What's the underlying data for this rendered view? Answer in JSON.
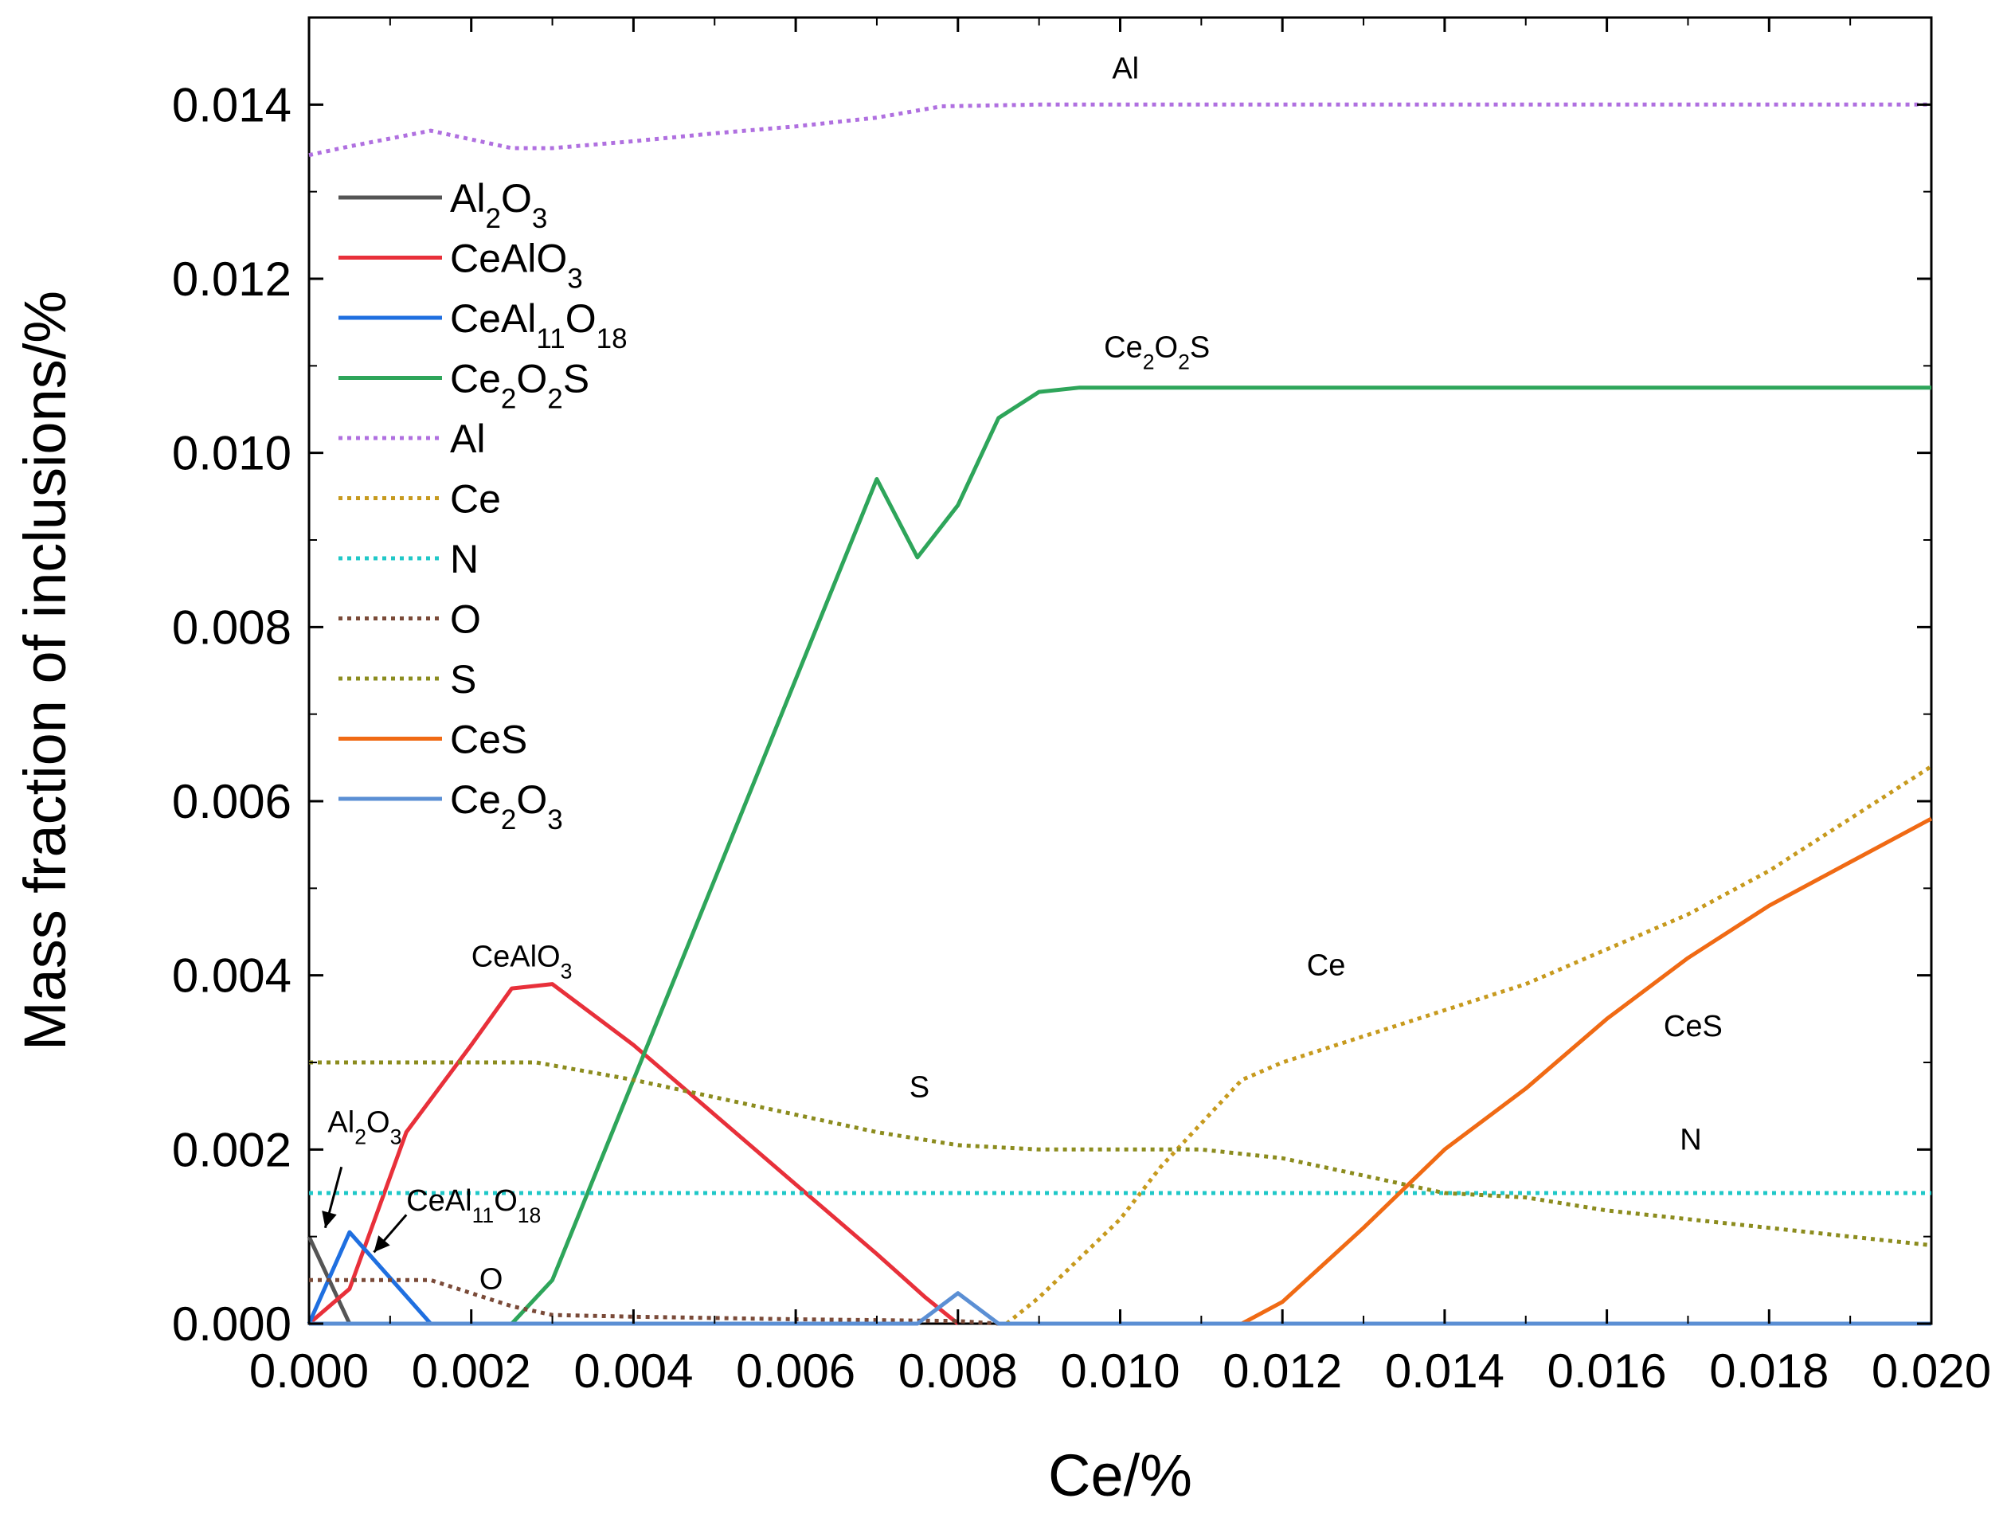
{
  "chart_data": {
    "type": "line",
    "title": "",
    "xlabel": "Ce/%",
    "ylabel": "Mass fraction of inclusions/%",
    "xlim": [
      0,
      0.02
    ],
    "ylim": [
      0,
      0.015
    ],
    "xticks": [
      "0.000",
      "0.002",
      "0.004",
      "0.006",
      "0.008",
      "0.010",
      "0.012",
      "0.014",
      "0.016",
      "0.018",
      "0.020"
    ],
    "yticks": [
      "0.000",
      "0.002",
      "0.004",
      "0.006",
      "0.008",
      "0.010",
      "0.012",
      "0.014"
    ],
    "grid": false,
    "legend_position": "top-left",
    "series": [
      {
        "name": "Al2O3",
        "label_base": "Al",
        "label_sub1": "2",
        "label_mid": "O",
        "label_sub2": "3",
        "color": "#555555",
        "style": "solid",
        "x": [
          0,
          0.0005
        ],
        "y": [
          0.001,
          0.0
        ]
      },
      {
        "name": "CeAlO3",
        "label_base": "CeAlO",
        "label_sub1": "3",
        "label_mid": "",
        "label_sub2": "",
        "color": "#e8303a",
        "style": "solid",
        "x": [
          0,
          0.0005,
          0.0012,
          0.002,
          0.0025,
          0.003,
          0.004,
          0.005,
          0.006,
          0.007,
          0.0076,
          0.008
        ],
        "y": [
          0,
          0.0004,
          0.0022,
          0.0032,
          0.00385,
          0.0039,
          0.0032,
          0.0024,
          0.0016,
          0.0008,
          0.0003,
          0
        ]
      },
      {
        "name": "CeAl11O18",
        "label_base": "CeAl",
        "label_sub1": "11",
        "label_mid": "O",
        "label_sub2": "18",
        "color": "#1f6fe0",
        "style": "solid",
        "x": [
          0,
          0.0005,
          0.0015,
          0.0019
        ],
        "y": [
          0,
          0.00105,
          0.0,
          0.0
        ]
      },
      {
        "name": "Ce2O2S",
        "label_base": "Ce",
        "label_sub1": "2",
        "label_mid": "O",
        "label_sub2": "2",
        "label_tail": "S",
        "color": "#2ea55a",
        "style": "solid",
        "x": [
          0.0025,
          0.003,
          0.004,
          0.005,
          0.006,
          0.007,
          0.0075,
          0.008,
          0.0085,
          0.009,
          0.0095,
          0.012,
          0.016,
          0.02
        ],
        "y": [
          0,
          0.0005,
          0.0028,
          0.0051,
          0.0074,
          0.0097,
          0.0088,
          0.0094,
          0.0104,
          0.0107,
          0.01075,
          0.01075,
          0.01075,
          0.01075
        ]
      },
      {
        "name": "Al",
        "label_base": "Al",
        "color": "#b070e0",
        "style": "dotted",
        "x": [
          0,
          0.0005,
          0.0015,
          0.0025,
          0.003,
          0.004,
          0.005,
          0.006,
          0.007,
          0.0078,
          0.009,
          0.012,
          0.016,
          0.02
        ],
        "y": [
          0.01342,
          0.01352,
          0.0137,
          0.0135,
          0.0135,
          0.01358,
          0.01367,
          0.01375,
          0.01385,
          0.01398,
          0.014,
          0.014,
          0.014,
          0.014
        ]
      },
      {
        "name": "Ce",
        "label_base": "Ce",
        "color": "#c79a1e",
        "style": "dotted",
        "x": [
          0.0086,
          0.009,
          0.01,
          0.0105,
          0.0115,
          0.012,
          0.013,
          0.014,
          0.015,
          0.016,
          0.017,
          0.018,
          0.019,
          0.02
        ],
        "y": [
          0,
          0.0003,
          0.0012,
          0.0018,
          0.0028,
          0.003,
          0.0033,
          0.0036,
          0.0039,
          0.0043,
          0.0047,
          0.0052,
          0.0058,
          0.0064
        ]
      },
      {
        "name": "N",
        "label_base": "N",
        "color": "#20c8c8",
        "style": "dotted",
        "x": [
          0,
          0.005,
          0.01,
          0.015,
          0.02
        ],
        "y": [
          0.0015,
          0.0015,
          0.0015,
          0.0015,
          0.0015
        ]
      },
      {
        "name": "O",
        "label_base": "O",
        "color": "#7a4a38",
        "style": "dotted",
        "x": [
          0,
          0.0005,
          0.0015,
          0.002,
          0.0025,
          0.003,
          0.004,
          0.006,
          0.008,
          0.0085
        ],
        "y": [
          0.0005,
          0.0005,
          0.0005,
          0.00035,
          0.0002,
          0.0001,
          8e-05,
          5e-05,
          3e-05,
          0
        ]
      },
      {
        "name": "S",
        "label_base": "S",
        "color": "#8c8c1e",
        "style": "dotted",
        "x": [
          0,
          0.001,
          0.002,
          0.0028,
          0.004,
          0.005,
          0.006,
          0.007,
          0.008,
          0.009,
          0.01,
          0.011,
          0.012,
          0.013,
          0.014,
          0.015,
          0.016,
          0.017,
          0.018,
          0.019,
          0.02
        ],
        "y": [
          0.003,
          0.003,
          0.003,
          0.003,
          0.0028,
          0.0026,
          0.0024,
          0.0022,
          0.00205,
          0.002,
          0.002,
          0.002,
          0.0019,
          0.0017,
          0.0015,
          0.00145,
          0.0013,
          0.0012,
          0.0011,
          0.001,
          0.0009
        ]
      },
      {
        "name": "CeS",
        "label_base": "CeS",
        "color": "#f06a14",
        "style": "solid",
        "x": [
          0.0115,
          0.012,
          0.013,
          0.014,
          0.015,
          0.016,
          0.017,
          0.018,
          0.019,
          0.02
        ],
        "y": [
          0,
          0.00025,
          0.0011,
          0.002,
          0.0027,
          0.0035,
          0.0042,
          0.0048,
          0.0053,
          0.0058
        ]
      },
      {
        "name": "Ce2O3",
        "label_base": "Ce",
        "label_sub1": "2",
        "label_mid": "O",
        "label_sub2": "3",
        "color": "#5b8fd4",
        "style": "solid",
        "x": [
          0,
          0.0075,
          0.008,
          0.0085,
          0.02
        ],
        "y": [
          0,
          0,
          0.00035,
          0,
          0
        ]
      }
    ],
    "annotations": [
      {
        "id": "annot-al",
        "text": "Al",
        "x": 0.0099,
        "y": 0.0143
      },
      {
        "id": "annot-ce2o2s",
        "text": "Ce2O2S",
        "base": "Ce",
        "sub1": "2",
        "mid": "O",
        "sub2": "2",
        "tail": "S",
        "x": 0.0098,
        "y": 0.0111
      },
      {
        "id": "annot-cealo3",
        "text": "CeAlO3",
        "base": "CeAlO",
        "sub1": "3",
        "x": 0.002,
        "y": 0.0041
      },
      {
        "id": "annot-ce",
        "text": "Ce",
        "x": 0.0123,
        "y": 0.004
      },
      {
        "id": "annot-s",
        "text": "S",
        "x": 0.0074,
        "y": 0.0026
      },
      {
        "id": "annot-ces",
        "text": "CeS",
        "x": 0.0167,
        "y": 0.0033
      },
      {
        "id": "annot-n",
        "text": "N",
        "x": 0.0169,
        "y": 0.002
      },
      {
        "id": "annot-al2o3",
        "text": "Al2O3",
        "base": "Al",
        "sub1": "2",
        "mid": "O",
        "sub2": "3",
        "x": 0.00023,
        "y": 0.0022
      },
      {
        "id": "annot-ceal11o18",
        "text": "CeAl11O18",
        "base": "CeAl",
        "sub1": "11",
        "mid": "O",
        "sub2": "18",
        "x": 0.0012,
        "y": 0.0013
      },
      {
        "id": "annot-o",
        "text": "O",
        "x": 0.0021,
        "y": 0.0004
      }
    ],
    "arrows": [
      {
        "id": "arrow-al2o3",
        "from": [
          0.0004,
          0.0018
        ],
        "to": [
          0.0002,
          0.0011
        ]
      },
      {
        "id": "arrow-ceal11o18",
        "from": [
          0.0012,
          0.00125
        ],
        "to": [
          0.0008,
          0.00082
        ]
      }
    ]
  }
}
